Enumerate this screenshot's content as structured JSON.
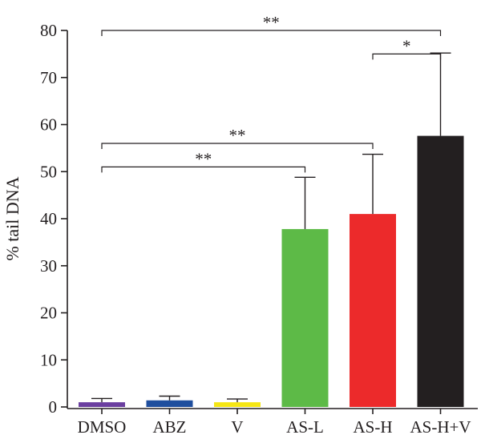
{
  "chart_data": {
    "type": "bar",
    "ylabel": "% tail DNA",
    "ylim": [
      0,
      80
    ],
    "yticks": [
      0,
      10,
      20,
      30,
      40,
      50,
      60,
      70,
      80
    ],
    "grid": false,
    "categories": [
      "DMSO",
      "ABZ",
      "V",
      "AS-L",
      "AS-H",
      "AS-H+V"
    ],
    "values": [
      1.0,
      1.4,
      1.0,
      37.8,
      41.0,
      57.6
    ],
    "errors": [
      0.8,
      0.9,
      0.7,
      11.0,
      12.7,
      17.6
    ],
    "colors": [
      "#6b3fa0",
      "#1f4e9e",
      "#f5e614",
      "#5dba47",
      "#ec2a2b",
      "#231f20"
    ],
    "significance": [
      {
        "from": 0,
        "to": 5,
        "label": "**",
        "y": 80
      },
      {
        "from": 4,
        "to": 5,
        "label": "*",
        "y": 75
      },
      {
        "from": 0,
        "to": 4,
        "label": "**",
        "y": 56
      },
      {
        "from": 0,
        "to": 3,
        "label": "**",
        "y": 51
      }
    ]
  }
}
